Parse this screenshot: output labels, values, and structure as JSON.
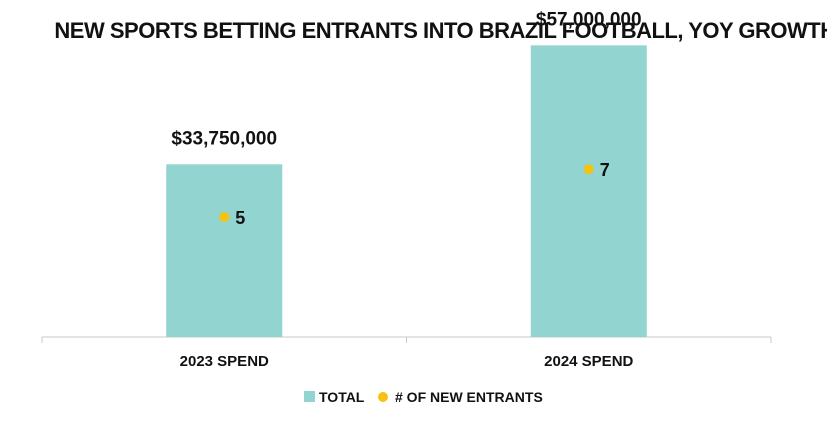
{
  "chart_data": {
    "type": "bar",
    "title": "NEW SPORTS BETTING ENTRANTS INTO BRAZIL FOOTBALL, YOY GROWTH",
    "categories": [
      "2023 SPEND",
      "2024 SPEND"
    ],
    "series": [
      {
        "name": "TOTAL",
        "kind": "bar",
        "color": "#92d4d0",
        "values": [
          33750000,
          57000000
        ],
        "labels": [
          "$33,750,000",
          "$57,000,000"
        ]
      },
      {
        "name": "# OF NEW ENTRANTS",
        "kind": "point",
        "color": "#f5c211",
        "values": [
          5,
          7
        ],
        "labels": [
          "5",
          "7"
        ]
      }
    ],
    "xlabel": "",
    "ylabel": "",
    "ylim": [
      0,
      60000000
    ],
    "grid": false,
    "legend_position": "bottom"
  }
}
